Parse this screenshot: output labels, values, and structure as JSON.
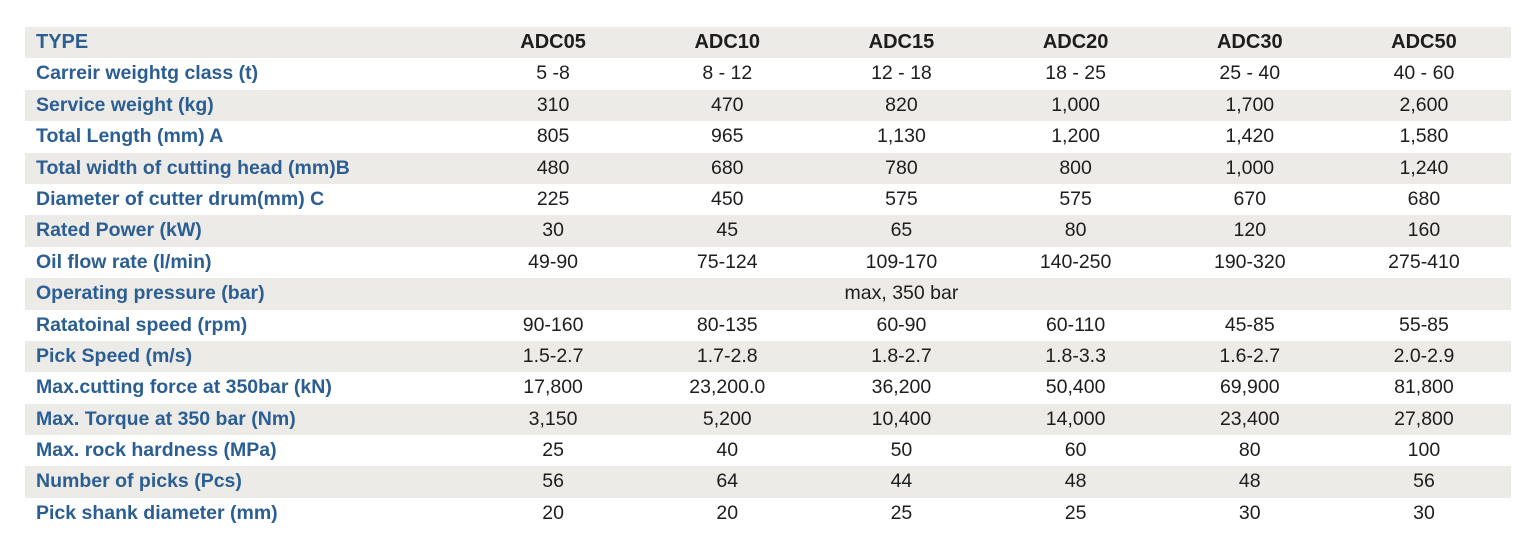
{
  "table": {
    "colors": {
      "label_blue": "#2b5e93",
      "stripe_gray": "#edebe7",
      "value_text": "#1d1d1b"
    },
    "header": {
      "type_label": "TYPE",
      "columns": [
        "ADC05",
        "ADC10",
        "ADC15",
        "ADC20",
        "ADC30",
        "ADC50"
      ]
    },
    "rows": [
      {
        "label": "Carreir weightg class (t)",
        "values": [
          "5 -8",
          "8 - 12",
          "12 - 18",
          "18 - 25",
          "25 - 40",
          "40 - 60"
        ]
      },
      {
        "label": "Service weight (kg)",
        "values": [
          "310",
          "470",
          "820",
          "1,000",
          "1,700",
          "2,600"
        ]
      },
      {
        "label": "Total Length (mm) A",
        "values": [
          "805",
          "965",
          "1,130",
          "1,200",
          "1,420",
          "1,580"
        ]
      },
      {
        "label": "Total width of cutting head (mm)B",
        "values": [
          "480",
          "680",
          "780",
          "800",
          "1,000",
          "1,240"
        ]
      },
      {
        "label": "Diameter of cutter drum(mm) C",
        "values": [
          "225",
          "450",
          "575",
          "575",
          "670",
          "680"
        ]
      },
      {
        "label": "Rated Power (kW)",
        "values": [
          "30",
          "45",
          "65",
          "80",
          "120",
          "160"
        ]
      },
      {
        "label": "Oil flow rate (l/min)",
        "values": [
          "49-90",
          "75-124",
          "109-170",
          "140-250",
          "190-320",
          "275-410"
        ]
      },
      {
        "label": "Operating pressure (bar)",
        "values": [
          "",
          "",
          "max, 350 bar",
          "",
          "",
          ""
        ]
      },
      {
        "label": "Ratatoinal speed (rpm)",
        "values": [
          "90-160",
          "80-135",
          "60-90",
          "60-110",
          "45-85",
          "55-85"
        ]
      },
      {
        "label": "Pick Speed (m/s)",
        "values": [
          "1.5-2.7",
          "1.7-2.8",
          "1.8-2.7",
          "1.8-3.3",
          "1.6-2.7",
          "2.0-2.9"
        ]
      },
      {
        "label": "Max.cutting force at 350bar (kN)",
        "values": [
          "17,800",
          "23,200.0",
          "36,200",
          "50,400",
          "69,900",
          "81,800"
        ]
      },
      {
        "label": "Max. Torque at 350 bar (Nm)",
        "values": [
          "3,150",
          "5,200",
          "10,400",
          "14,000",
          "23,400",
          "27,800"
        ]
      },
      {
        "label": "Max. rock hardness (MPa)",
        "values": [
          "25",
          "40",
          "50",
          "60",
          "80",
          "100"
        ]
      },
      {
        "label": "Number of picks (Pcs)",
        "values": [
          "56",
          "64",
          "44",
          "48",
          "48",
          "56"
        ]
      },
      {
        "label": "Pick shank diameter (mm)",
        "values": [
          "20",
          "20",
          "25",
          "25",
          "30",
          "30"
        ]
      }
    ]
  }
}
